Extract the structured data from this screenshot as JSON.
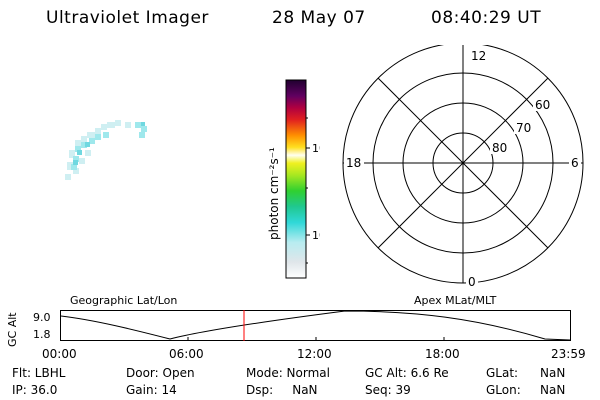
{
  "header": {
    "instrument": "Ultraviolet Imager",
    "date": "28 May 07",
    "time": "08:40:29 UT"
  },
  "colorbar": {
    "label": "photon cm⁻²s⁻¹",
    "tick_100": "100",
    "tick_10": "10"
  },
  "polar": {
    "mlt_top": "12",
    "mlt_left": "18",
    "mlt_right": "6",
    "mlt_bottom": "0",
    "lat_60": "60",
    "lat_70": "70",
    "lat_80": "80"
  },
  "orbit": {
    "left_title": "Geographic Lat/Lon",
    "right_title": "Apex MLat/MLT",
    "axis_label": "GC Alt",
    "y_top": "9.0",
    "y_bottom": "1.8",
    "x_ticks": [
      "00:00",
      "06:00",
      "12:00",
      "18:00",
      "23:59"
    ]
  },
  "info": {
    "flt": "Flt: LBHL",
    "ip": "IP: 36.0",
    "door": "Door: Open",
    "gain": "Gain: 14",
    "mode": "Mode: Normal",
    "dsp": "Dsp:     NaN",
    "gcalt": "GC Alt: 6.6 Re",
    "seq": "Seq: 39",
    "glat_label": "GLat:",
    "glat_value": "NaN",
    "glon_label": "GLon:",
    "glon_value": "NaN"
  },
  "colors": {
    "marker": "#ff0000",
    "patch": "#9fe8ec"
  }
}
